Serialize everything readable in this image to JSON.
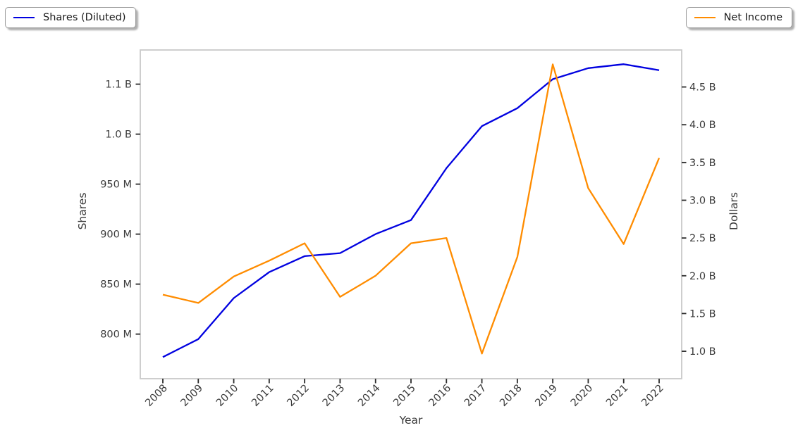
{
  "chart_data": {
    "type": "line",
    "title": "",
    "xlabel": "Year",
    "x_categories": [
      "2008",
      "2009",
      "2010",
      "2011",
      "2012",
      "2013",
      "2014",
      "2015",
      "2016",
      "2017",
      "2018",
      "2019",
      "2020",
      "2021",
      "2022"
    ],
    "series": [
      {
        "name": "Shares (Diluted)",
        "axis": "left",
        "unit": "shares (millions)",
        "color": "#0101e0",
        "values": [
          777,
          795,
          836,
          862,
          878,
          881,
          900,
          914,
          966,
          1008,
          1026,
          1055,
          1066,
          1070,
          1064
        ]
      },
      {
        "name": "Net Income",
        "axis": "right",
        "unit": "dollars (billions)",
        "color": "#ff8c00",
        "values": [
          1.75,
          1.64,
          1.99,
          2.2,
          2.43,
          1.72,
          2.0,
          2.43,
          2.5,
          0.97,
          2.25,
          4.8,
          3.16,
          2.42,
          3.56
        ]
      }
    ],
    "left_axis": {
      "label": "Shares",
      "tick_labels": [
        "800 M",
        "850 M",
        "900 M",
        "950 M",
        "1.0 B",
        "1.1 B"
      ],
      "tick_values": [
        800,
        850,
        900,
        950,
        1000,
        1050
      ],
      "range": [
        755.4,
        1084.2
      ]
    },
    "right_axis": {
      "label": "Dollars",
      "tick_labels": [
        "1.0 B",
        "1.5 B",
        "2.0 B",
        "2.5 B",
        "3.0 B",
        "3.5 B",
        "4.0 B",
        "4.5 B"
      ],
      "tick_values": [
        1.0,
        1.5,
        2.0,
        2.5,
        3.0,
        3.5,
        4.0,
        4.5
      ],
      "range": [
        0.637,
        4.99
      ]
    },
    "legend": {
      "left_label": "Shares (Diluted)",
      "right_label": "Net Income",
      "position": "outside-top-corners"
    },
    "grid": false,
    "theme": {
      "background": "#ffffff",
      "spine_color": "#c9c9c9",
      "tick_color": "#2b2b2b",
      "tick_text_color": "#3a3a3a"
    }
  }
}
